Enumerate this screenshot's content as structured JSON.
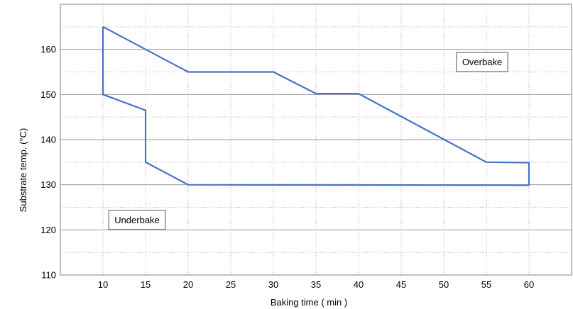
{
  "chart_data": {
    "type": "line",
    "xlabel": "Baking time ( min )",
    "ylabel": "Substrate temp. (°C)",
    "xlim": [
      5,
      65
    ],
    "ylim": [
      110,
      170
    ],
    "xticks": [
      10,
      15,
      20,
      25,
      30,
      35,
      40,
      45,
      50,
      55,
      60
    ],
    "yticks": [
      110,
      120,
      130,
      140,
      150,
      160
    ],
    "grid": true,
    "series": [
      {
        "color": "#4472c4",
        "x": [
          10,
          20,
          30,
          35,
          40,
          55,
          60,
          60,
          20,
          15,
          15,
          10,
          10
        ],
        "y": [
          165,
          155,
          155,
          150.2,
          150.2,
          135,
          134.9,
          129.9,
          130,
          135,
          146.5,
          150,
          165
        ]
      }
    ],
    "annotations": [
      {
        "text": "Overbake",
        "x": 54.5,
        "y": 157.2
      },
      {
        "text": "Underbake",
        "x": 14,
        "y": 122.2
      }
    ]
  }
}
